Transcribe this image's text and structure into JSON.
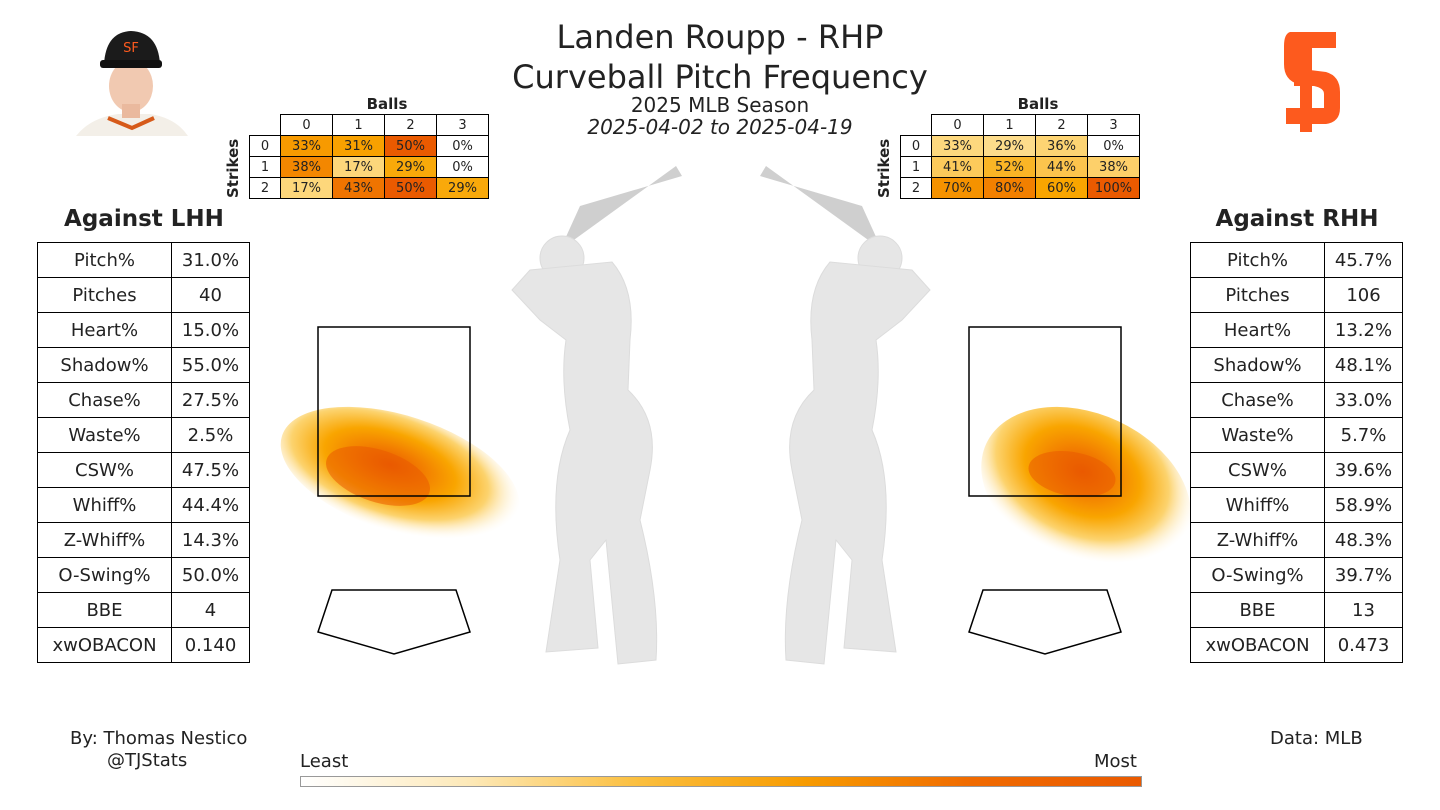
{
  "header": {
    "player_line": "Landen Roupp - RHP",
    "pitch_line": "Curveball Pitch Frequency",
    "season_line": "2025 MLB Season",
    "date_line": "2025-04-02 to 2025-04-19"
  },
  "icons": {
    "headshot": "player-headshot-icon",
    "logo": "sf-giants-logo-icon",
    "batter": "batter-silhouette-icon"
  },
  "colors": {
    "heat_low": "#fff3dd",
    "heat_mid": "#f9a500",
    "heat_high": "#ea5a00",
    "logo": "#fd5a1e",
    "silhouette": "#e6e6e6"
  },
  "count_tables": {
    "balls_label": "Balls",
    "strikes_label": "Strikes",
    "ball_headers": [
      "0",
      "1",
      "2",
      "3"
    ],
    "strike_headers": [
      "0",
      "1",
      "2"
    ],
    "lhh": [
      [
        "33%",
        "31%",
        "50%",
        "0%"
      ],
      [
        "38%",
        "17%",
        "29%",
        "0%"
      ],
      [
        "17%",
        "43%",
        "50%",
        "29%"
      ]
    ],
    "rhh": [
      [
        "33%",
        "29%",
        "36%",
        "0%"
      ],
      [
        "41%",
        "52%",
        "44%",
        "38%"
      ],
      [
        "70%",
        "80%",
        "60%",
        "100%"
      ]
    ]
  },
  "lhh": {
    "title": "Against LHH",
    "stats": [
      {
        "k": "Pitch%",
        "v": "31.0%"
      },
      {
        "k": "Pitches",
        "v": "40"
      },
      {
        "k": "Heart%",
        "v": "15.0%"
      },
      {
        "k": "Shadow%",
        "v": "55.0%"
      },
      {
        "k": "Chase%",
        "v": "27.5%"
      },
      {
        "k": "Waste%",
        "v": "2.5%"
      },
      {
        "k": "CSW%",
        "v": "47.5%"
      },
      {
        "k": "Whiff%",
        "v": "44.4%"
      },
      {
        "k": "Z-Whiff%",
        "v": "14.3%"
      },
      {
        "k": "O-Swing%",
        "v": "50.0%"
      },
      {
        "k": "BBE",
        "v": "4"
      },
      {
        "k": "xwOBACON",
        "v": "0.140"
      }
    ]
  },
  "rhh": {
    "title": "Against RHH",
    "stats": [
      {
        "k": "Pitch%",
        "v": "45.7%"
      },
      {
        "k": "Pitches",
        "v": "106"
      },
      {
        "k": "Heart%",
        "v": "13.2%"
      },
      {
        "k": "Shadow%",
        "v": "48.1%"
      },
      {
        "k": "Chase%",
        "v": "33.0%"
      },
      {
        "k": "Waste%",
        "v": "5.7%"
      },
      {
        "k": "CSW%",
        "v": "39.6%"
      },
      {
        "k": "Whiff%",
        "v": "58.9%"
      },
      {
        "k": "Z-Whiff%",
        "v": "48.3%"
      },
      {
        "k": "O-Swing%",
        "v": "39.7%"
      },
      {
        "k": "BBE",
        "v": "13"
      },
      {
        "k": "xwOBACON",
        "v": "0.473"
      }
    ]
  },
  "footer": {
    "by_line": "By: Thomas Nestico",
    "handle": "@TJStats",
    "data_line": "Data: MLB",
    "least": "Least",
    "most": "Most"
  },
  "chart_data": {
    "type": "heatmap",
    "description_units": "pitch location density (relative)",
    "panels": [
      {
        "name": "Against LHH",
        "density_peak": "low and away, bottom of zone toward batter's outside edge"
      },
      {
        "name": "Against RHH",
        "density_peak": "low in zone, slightly toward outer edge"
      }
    ],
    "count_frequency": {
      "lhh": [
        [
          33,
          31,
          50,
          0
        ],
        [
          38,
          17,
          29,
          0
        ],
        [
          17,
          43,
          50,
          29
        ]
      ],
      "rhh": [
        [
          33,
          29,
          36,
          0
        ],
        [
          41,
          52,
          44,
          38
        ],
        [
          70,
          80,
          60,
          100
        ]
      ]
    },
    "colorbar": {
      "low": "Least",
      "high": "Most"
    }
  }
}
